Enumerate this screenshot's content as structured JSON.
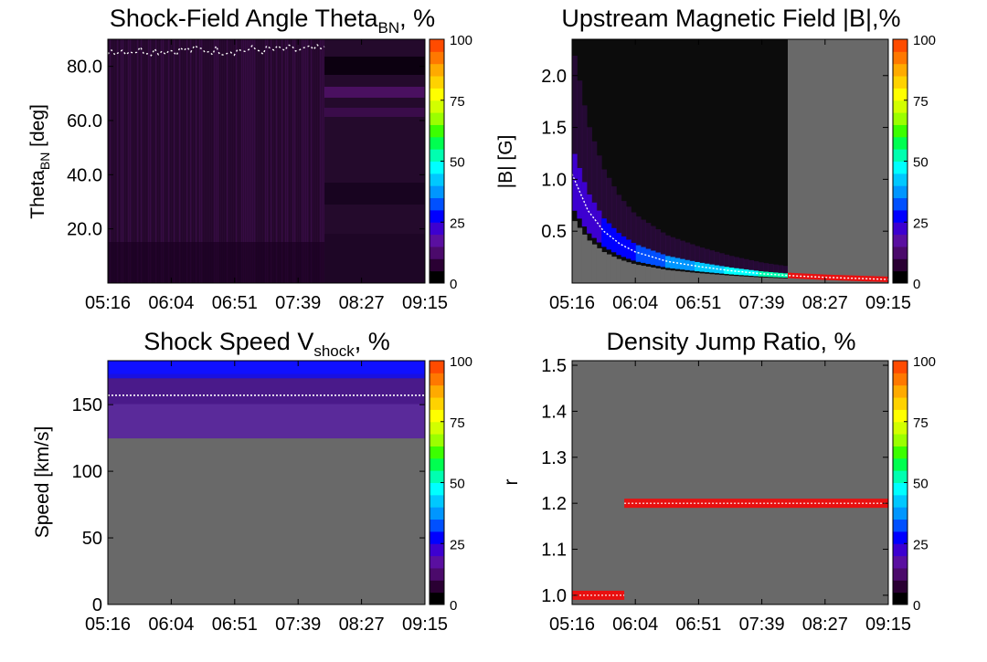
{
  "colorbar": {
    "ticks": [
      "0",
      "25",
      "50",
      "75",
      "100"
    ],
    "colors": [
      "#000000",
      "#2a0033",
      "#4b0a6b",
      "#5a0fa0",
      "#3d00d0",
      "#0000ff",
      "#0050ff",
      "#0096ff",
      "#00c8ff",
      "#00ffff",
      "#00ffb0",
      "#00ff50",
      "#3cff00",
      "#9bff00",
      "#d2ff00",
      "#ffff00",
      "#ffd200",
      "#ffaa00",
      "#ff7800",
      "#ff4b00"
    ]
  },
  "chart_data": [
    {
      "type": "heatmap",
      "title_main": "Shock-Field Angle Theta",
      "title_sub": "BN",
      "title_tail": ", %",
      "ylabel_main": "Theta",
      "ylabel_sub": "BN",
      "ylabel_tail": " [deg]",
      "x_ticks": [
        "05:16",
        "06:04",
        "06:51",
        "07:39",
        "08:27",
        "09:15"
      ],
      "y_ticks": [
        {
          "label": "20.0",
          "value": 20
        },
        {
          "label": "40.0",
          "value": 40
        },
        {
          "label": "60.0",
          "value": 60
        },
        {
          "label": "80.0",
          "value": 80
        }
      ],
      "ylim": [
        0,
        90
      ],
      "colorbar_range": [
        0,
        100
      ],
      "description": "Mostly low percentages (dark purple) over all angles; white trace near 86 deg up to ~07:39"
    },
    {
      "type": "heatmap",
      "title_main": "Upstream Magnetic Field |B|,%",
      "title_sub": "",
      "title_tail": "",
      "ylabel_main": "|B| [G]",
      "ylabel_sub": "",
      "ylabel_tail": "",
      "x_ticks": [
        "05:16",
        "06:04",
        "06:51",
        "07:39",
        "08:27",
        "09:15"
      ],
      "y_ticks": [
        {
          "label": "0.5",
          "value": 0.5
        },
        {
          "label": "1.0",
          "value": 1.0
        },
        {
          "label": "1.5",
          "value": 1.5
        },
        {
          "label": "2.0",
          "value": 2.0
        }
      ],
      "ylim": [
        0,
        2.35
      ],
      "colorbar_range": [
        0,
        100
      ],
      "median_curve": {
        "x_frac": [
          0.0,
          0.05,
          0.1,
          0.15,
          0.2,
          0.3,
          0.4,
          0.5,
          0.6,
          0.7,
          0.8,
          0.9,
          1.0
        ],
        "y": [
          1.05,
          0.7,
          0.5,
          0.38,
          0.3,
          0.21,
          0.16,
          0.12,
          0.09,
          0.07,
          0.055,
          0.045,
          0.035
        ]
      }
    },
    {
      "type": "heatmap",
      "title_main": "Shock Speed V",
      "title_sub": "shock",
      "title_tail": ", %",
      "ylabel_main": "Speed [km/s]",
      "ylabel_sub": "",
      "ylabel_tail": "",
      "x_ticks": [
        "05:16",
        "06:04",
        "06:51",
        "07:39",
        "08:27",
        "09:15"
      ],
      "y_ticks": [
        {
          "label": "0",
          "value": 0
        },
        {
          "label": "50",
          "value": 50
        },
        {
          "label": "100",
          "value": 100
        },
        {
          "label": "150",
          "value": 150
        }
      ],
      "ylim": [
        0,
        183
      ],
      "colorbar_range": [
        0,
        100
      ],
      "median_value": 157,
      "data_range": [
        125,
        183
      ]
    },
    {
      "type": "heatmap",
      "title_main": "Density Jump Ratio, %",
      "title_sub": "",
      "title_tail": "",
      "ylabel_main": "r",
      "ylabel_sub": "",
      "ylabel_tail": "",
      "x_ticks": [
        "05:16",
        "06:04",
        "06:51",
        "07:39",
        "08:27",
        "09:15"
      ],
      "y_ticks": [
        {
          "label": "1.0",
          "value": 1.0
        },
        {
          "label": "1.1",
          "value": 1.1
        },
        {
          "label": "1.2",
          "value": 1.2
        },
        {
          "label": "1.3",
          "value": 1.3
        },
        {
          "label": "1.4",
          "value": 1.4
        },
        {
          "label": "1.5",
          "value": 1.5
        }
      ],
      "ylim": [
        0.98,
        1.51
      ],
      "colorbar_range": [
        0,
        100
      ],
      "segments": [
        {
          "x_start_frac": 0.0,
          "x_end_frac": 0.165,
          "value": 1.0
        },
        {
          "x_start_frac": 0.165,
          "x_end_frac": 1.0,
          "value": 1.2
        }
      ]
    }
  ]
}
